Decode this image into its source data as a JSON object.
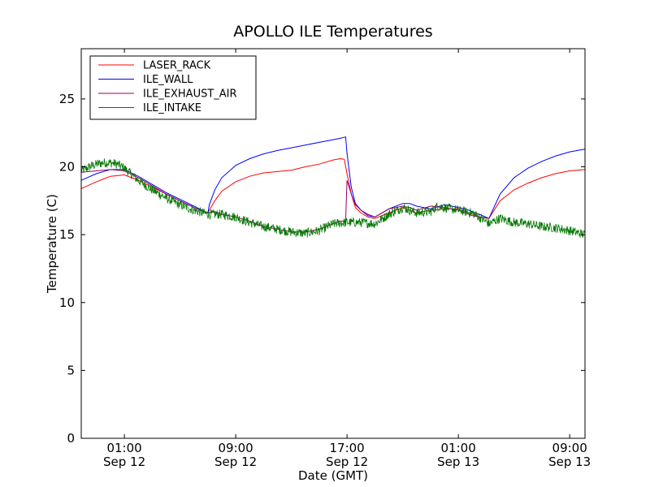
{
  "chart_data": {
    "type": "line",
    "title": "APOLLO ILE Temperatures",
    "xlabel": "Date (GMT)",
    "ylabel": "Temperature (C)",
    "xlim": [
      -3.1,
      33.1
    ],
    "ylim": [
      0,
      28.7
    ],
    "grid": false,
    "legend_position": "top-left",
    "y_ticks": [
      0,
      5,
      10,
      15,
      20,
      25
    ],
    "x_ticks": [
      {
        "value": 0,
        "time": "01:00",
        "date": "Sep 12"
      },
      {
        "value": 8,
        "time": "09:00",
        "date": "Sep 12"
      },
      {
        "value": 16,
        "time": "17:00",
        "date": "Sep 12"
      },
      {
        "value": 24,
        "time": "01:00",
        "date": "Sep 13"
      },
      {
        "value": 32,
        "time": "09:00",
        "date": "Sep 13"
      }
    ],
    "series": [
      {
        "name": "LASER_RACK",
        "color": "#ff0000",
        "noise": 0,
        "x": [
          -3.1,
          -2,
          -1,
          0,
          1,
          2,
          3,
          4,
          5,
          6,
          6.1,
          6.5,
          7,
          8,
          9,
          10,
          11,
          12,
          13,
          14,
          15,
          15.5,
          15.8,
          16.0,
          16.3,
          16.6,
          17,
          17.5,
          18,
          19,
          19.5,
          20,
          20.5,
          21,
          22,
          23,
          24,
          24.5,
          25,
          25.5,
          26.2,
          27,
          28,
          29,
          30,
          31,
          32,
          33.1
        ],
        "y": [
          18.4,
          18.9,
          19.3,
          19.4,
          19.0,
          18.5,
          18.0,
          17.5,
          17.0,
          16.6,
          16.8,
          17.5,
          18.2,
          18.9,
          19.3,
          19.55,
          19.65,
          19.75,
          20.0,
          20.2,
          20.5,
          20.6,
          20.55,
          19.5,
          18.0,
          17.0,
          16.6,
          16.3,
          16.2,
          16.6,
          16.8,
          17.0,
          16.8,
          16.6,
          16.8,
          16.9,
          16.9,
          16.7,
          16.5,
          16.3,
          16.2,
          17.5,
          18.3,
          18.8,
          19.2,
          19.5,
          19.7,
          19.8
        ]
      },
      {
        "name": "ILE_WALL",
        "color": "#0000ff",
        "noise": 0,
        "x": [
          -3.1,
          -2,
          -1,
          0,
          1,
          2,
          3,
          4,
          5,
          6,
          6.1,
          6.5,
          7,
          8,
          9,
          10,
          11,
          12,
          13,
          14,
          15,
          15.5,
          15.9,
          16.0,
          16.3,
          16.6,
          17,
          17.5,
          18,
          19,
          20,
          20.5,
          21,
          22,
          23,
          24,
          24.5,
          25,
          25.5,
          26.2,
          27,
          28,
          29,
          30,
          31,
          32,
          33.1
        ],
        "y": [
          19.0,
          19.5,
          19.8,
          19.8,
          19.3,
          18.7,
          18.1,
          17.6,
          17.1,
          16.6,
          17.2,
          18.3,
          19.2,
          20.1,
          20.6,
          20.95,
          21.2,
          21.4,
          21.6,
          21.8,
          22.0,
          22.1,
          22.2,
          21.0,
          18.5,
          17.3,
          16.8,
          16.4,
          16.3,
          16.9,
          17.3,
          17.3,
          17.1,
          16.9,
          17.2,
          17.0,
          16.9,
          16.7,
          16.5,
          16.2,
          18.0,
          19.2,
          19.9,
          20.4,
          20.8,
          21.1,
          21.3
        ]
      },
      {
        "name": "ILE_EXHAUST_AIR",
        "color": "#990066",
        "noise": 0,
        "x": [
          -3.1,
          -2,
          -1,
          0,
          1,
          2,
          3,
          4,
          5,
          6,
          6.5,
          7,
          8,
          9,
          10,
          11,
          12,
          13,
          14,
          15,
          15.5,
          15.9,
          16.0,
          16.3,
          16.6,
          17,
          17.5,
          18,
          19,
          20,
          20.5,
          21,
          22,
          23,
          24,
          24.5,
          25,
          25.5,
          26.2
        ],
        "y": [
          19.6,
          19.7,
          19.8,
          19.7,
          19.2,
          18.6,
          18.0,
          17.5,
          17.0,
          16.6,
          16.7,
          16.5,
          16.3,
          16.0,
          15.6,
          15.4,
          15.2,
          15.2,
          15.4,
          15.8,
          16.0,
          16.0,
          19.0,
          18.0,
          17.2,
          16.8,
          16.5,
          16.3,
          16.9,
          17.1,
          17.0,
          16.8,
          17.1,
          17.0,
          16.8,
          16.6,
          16.4,
          16.3,
          16.2
        ]
      },
      {
        "name": "ILE_INTAKE",
        "color": "#007700",
        "noise": 0.35,
        "x": [
          -3.1,
          -2.5,
          -2,
          -1.5,
          -1,
          -0.5,
          0,
          1,
          2,
          3,
          4,
          5,
          6,
          7,
          8,
          9,
          10,
          11,
          12,
          13,
          14,
          15,
          16,
          17,
          18,
          19,
          20,
          21,
          22,
          22.5,
          23,
          24,
          25,
          25.5,
          26.2,
          27,
          28,
          29,
          30,
          31,
          32,
          33.1
        ],
        "y": [
          19.7,
          20.0,
          20.2,
          20.3,
          20.3,
          20.2,
          19.9,
          19.0,
          18.3,
          17.7,
          17.2,
          16.8,
          16.5,
          16.5,
          16.3,
          15.9,
          15.6,
          15.4,
          15.2,
          15.1,
          15.3,
          15.8,
          15.9,
          15.9,
          15.8,
          16.5,
          17.0,
          16.6,
          16.7,
          17.1,
          17.0,
          16.8,
          16.6,
          16.3,
          15.8,
          16.2,
          15.9,
          15.8,
          15.6,
          15.5,
          15.3,
          15.0
        ]
      }
    ]
  }
}
